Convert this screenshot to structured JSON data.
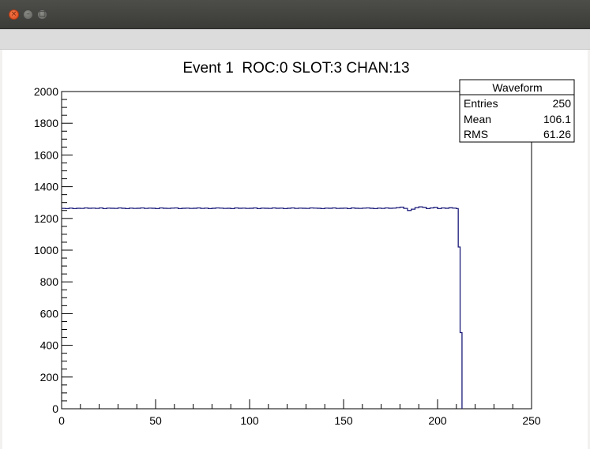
{
  "window": {
    "buttons": [
      {
        "name": "close",
        "glyph": "×"
      },
      {
        "name": "minimize",
        "glyph": "–"
      },
      {
        "name": "maximize",
        "glyph": "□"
      }
    ]
  },
  "stats_box": {
    "title": "Waveform",
    "rows": [
      {
        "label": "Entries",
        "value": "250"
      },
      {
        "label": "Mean",
        "value": "106.1"
      },
      {
        "label": "RMS",
        "value": "61.26"
      }
    ]
  },
  "colors": {
    "line": "#1b1b7a",
    "window_titlebar": "#3f3f3c",
    "close_button": "#e35a2c"
  },
  "chart_data": {
    "type": "line",
    "title": "Event 1  ROC:0 SLOT:3 CHAN:13",
    "xlabel": "",
    "ylabel": "",
    "xlim": [
      0,
      250
    ],
    "ylim": [
      0,
      2000
    ],
    "x_ticks": [
      "0",
      "50",
      "100",
      "150",
      "200",
      "250"
    ],
    "y_ticks": [
      "0",
      "200",
      "400",
      "600",
      "800",
      "1000",
      "1200",
      "1400",
      "1600",
      "1800",
      "2000"
    ],
    "grid": false,
    "legend": "top-right",
    "series": [
      {
        "x": [
          0,
          2,
          4,
          6,
          8,
          10,
          12,
          14,
          16,
          18,
          20,
          22,
          24,
          26,
          28,
          30,
          32,
          34,
          36,
          38,
          40,
          42,
          44,
          46,
          48,
          50,
          52,
          54,
          56,
          58,
          60,
          62,
          64,
          66,
          68,
          70,
          72,
          74,
          76,
          78,
          80,
          82,
          84,
          86,
          88,
          90,
          92,
          94,
          96,
          98,
          100,
          102,
          104,
          106,
          108,
          110,
          112,
          114,
          116,
          118,
          120,
          122,
          124,
          126,
          128,
          130,
          132,
          134,
          136,
          138,
          140,
          142,
          144,
          146,
          148,
          150,
          152,
          154,
          156,
          158,
          160,
          162,
          164,
          166,
          168,
          170,
          172,
          174,
          176,
          178,
          180,
          182,
          184,
          186,
          188,
          190,
          192,
          194,
          196,
          198,
          200,
          202,
          204,
          206,
          208,
          210,
          211,
          212,
          213
        ],
        "y": [
          1263,
          1262,
          1265,
          1262,
          1264,
          1263,
          1266,
          1264,
          1265,
          1263,
          1266,
          1262,
          1265,
          1264,
          1263,
          1266,
          1264,
          1262,
          1265,
          1263,
          1264,
          1266,
          1263,
          1265,
          1264,
          1262,
          1266,
          1264,
          1263,
          1265,
          1266,
          1262,
          1264,
          1265,
          1263,
          1264,
          1266,
          1263,
          1265,
          1262,
          1264,
          1266,
          1265,
          1263,
          1264,
          1262,
          1266,
          1264,
          1265,
          1263,
          1264,
          1266,
          1262,
          1265,
          1264,
          1263,
          1266,
          1264,
          1265,
          1262,
          1264,
          1266,
          1263,
          1265,
          1264,
          1263,
          1266,
          1265,
          1264,
          1262,
          1265,
          1264,
          1266,
          1263,
          1264,
          1265,
          1262,
          1266,
          1264,
          1263,
          1265,
          1266,
          1264,
          1262,
          1265,
          1263,
          1266,
          1264,
          1265,
          1268,
          1271,
          1263,
          1250,
          1258,
          1268,
          1273,
          1270,
          1262,
          1266,
          1270,
          1262,
          1266,
          1264,
          1267,
          1265,
          1262,
          1020,
          480,
          0
        ]
      }
    ]
  }
}
